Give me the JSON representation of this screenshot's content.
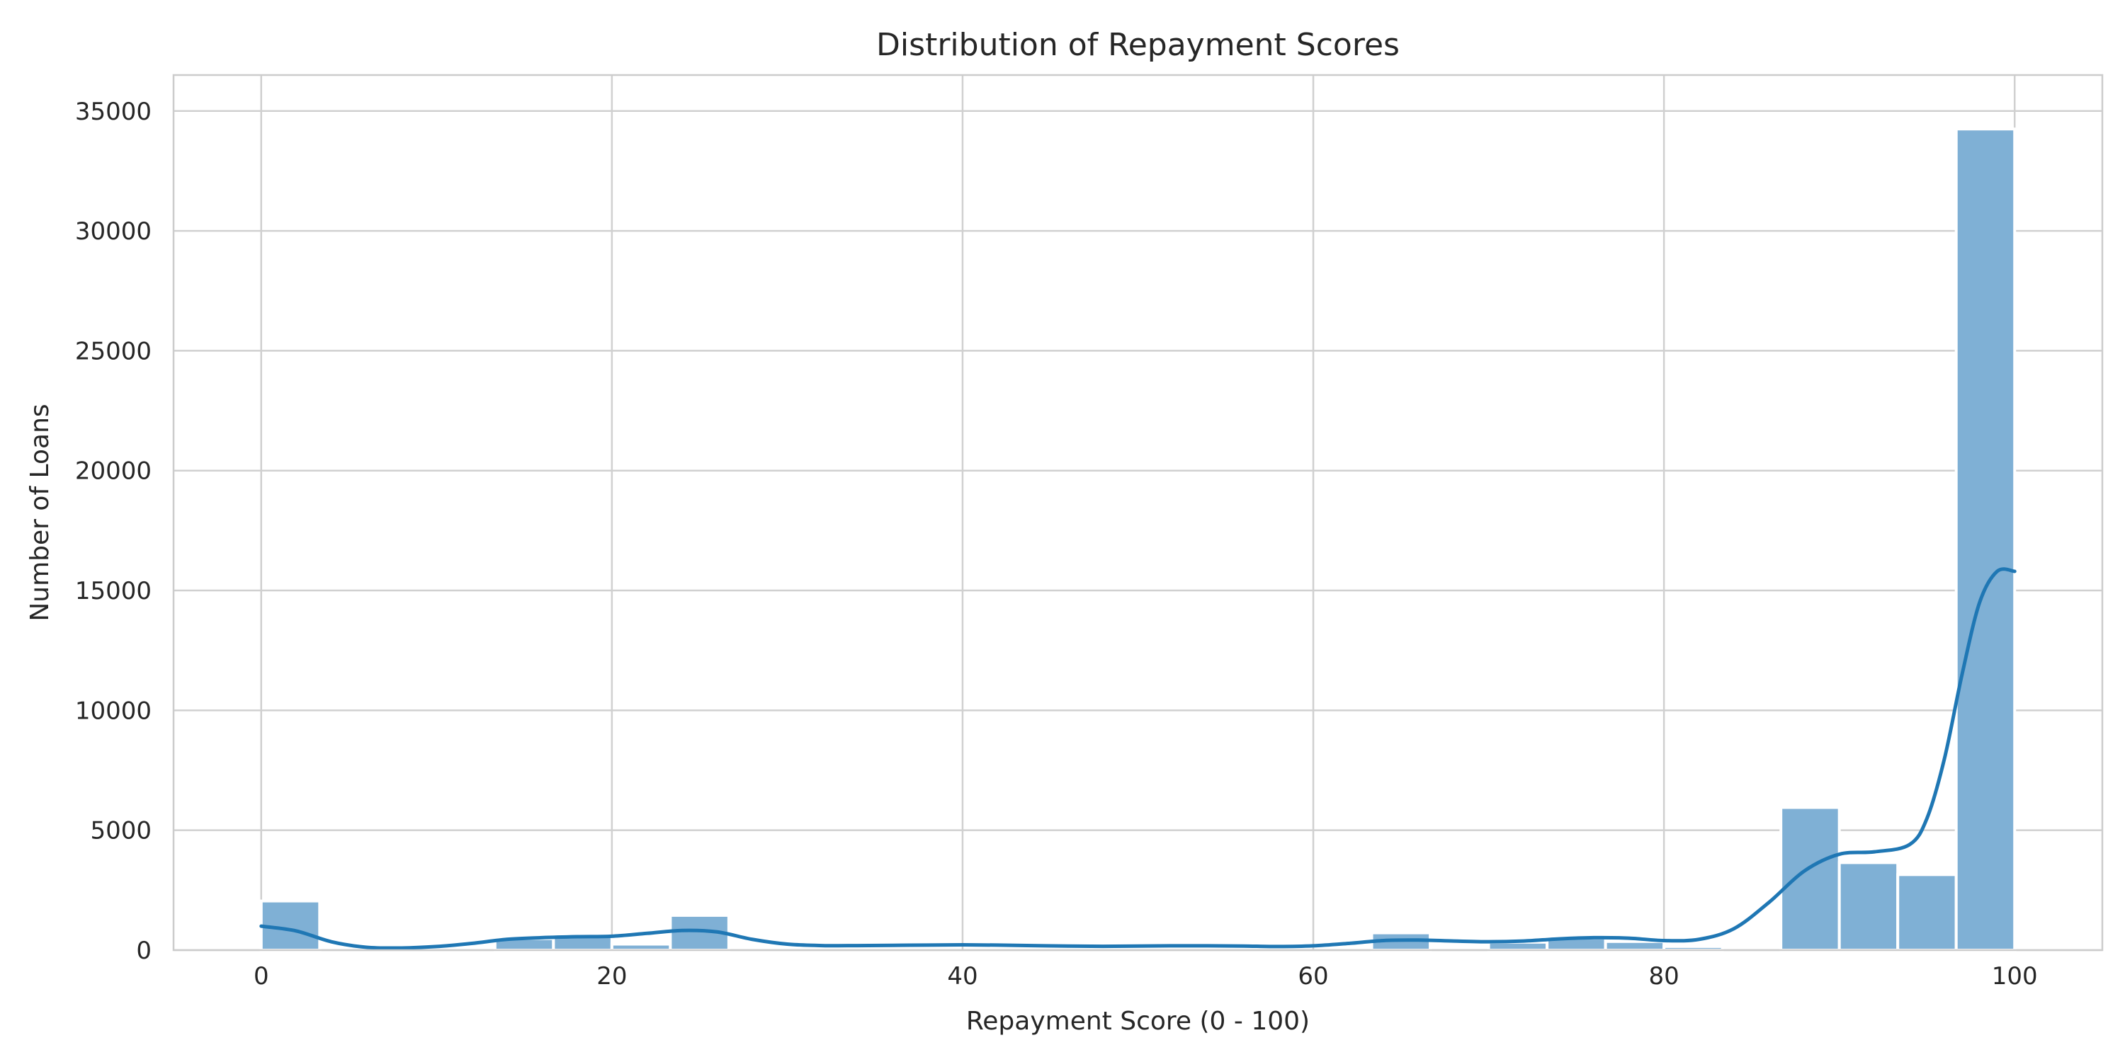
{
  "chart_data": {
    "type": "bar",
    "title": "Distribution of Repayment Scores",
    "xlabel": "Repayment Score (0 - 100)",
    "ylabel": "Number of Loans",
    "xlim": [
      -5,
      105
    ],
    "ylim": [
      0,
      36500
    ],
    "x_ticks": [
      0,
      20,
      40,
      60,
      80,
      100
    ],
    "y_ticks": [
      0,
      5000,
      10000,
      15000,
      20000,
      25000,
      30000,
      35000
    ],
    "grid": true,
    "bin_width": 3.333,
    "bins": [
      {
        "start": 0.0,
        "value": 2050
      },
      {
        "start": 3.333,
        "value": 0
      },
      {
        "start": 6.667,
        "value": 0
      },
      {
        "start": 10.0,
        "value": 0
      },
      {
        "start": 13.333,
        "value": 480
      },
      {
        "start": 16.667,
        "value": 560
      },
      {
        "start": 20.0,
        "value": 250
      },
      {
        "start": 23.333,
        "value": 1450
      },
      {
        "start": 26.667,
        "value": 0
      },
      {
        "start": 30.0,
        "value": 0
      },
      {
        "start": 33.333,
        "value": 0
      },
      {
        "start": 36.667,
        "value": 0
      },
      {
        "start": 40.0,
        "value": 0
      },
      {
        "start": 43.333,
        "value": 0
      },
      {
        "start": 46.667,
        "value": 0
      },
      {
        "start": 50.0,
        "value": 0
      },
      {
        "start": 53.333,
        "value": 0
      },
      {
        "start": 56.667,
        "value": 0
      },
      {
        "start": 60.0,
        "value": 0
      },
      {
        "start": 63.333,
        "value": 720
      },
      {
        "start": 66.667,
        "value": 0
      },
      {
        "start": 70.0,
        "value": 330
      },
      {
        "start": 73.333,
        "value": 500
      },
      {
        "start": 76.667,
        "value": 360
      },
      {
        "start": 80.0,
        "value": 150
      },
      {
        "start": 83.333,
        "value": 0
      },
      {
        "start": 86.667,
        "value": 5950
      },
      {
        "start": 90.0,
        "value": 3650
      },
      {
        "start": 93.333,
        "value": 3150
      },
      {
        "start": 96.667,
        "value": 34250
      }
    ],
    "kde": {
      "x": [
        0,
        2,
        4,
        6,
        8,
        10,
        12,
        14,
        16,
        18,
        20,
        22,
        24,
        26,
        28,
        30,
        32,
        34,
        36,
        38,
        40,
        42,
        44,
        46,
        48,
        50,
        52,
        54,
        56,
        58,
        60,
        62,
        64,
        66,
        68,
        70,
        72,
        74,
        76,
        78,
        80,
        82,
        84,
        86,
        88,
        90,
        92,
        94,
        95,
        96,
        97,
        98,
        99,
        100
      ],
      "y": [
        1000,
        800,
        350,
        120,
        90,
        150,
        280,
        450,
        520,
        560,
        580,
        700,
        820,
        760,
        450,
        250,
        190,
        190,
        200,
        210,
        220,
        210,
        190,
        170,
        160,
        170,
        180,
        180,
        170,
        150,
        180,
        280,
        400,
        420,
        380,
        350,
        380,
        470,
        520,
        500,
        400,
        450,
        900,
        2000,
        3300,
        4000,
        4100,
        4400,
        5500,
        8000,
        11500,
        14500,
        15800,
        15800
      ]
    },
    "colors": {
      "bar_fill": "#7fb0d5",
      "bar_stroke": "#ffffff",
      "kde_line": "#1f77b4",
      "grid": "#d0d0d0",
      "spine": "#cccccc",
      "text": "#262626"
    }
  }
}
